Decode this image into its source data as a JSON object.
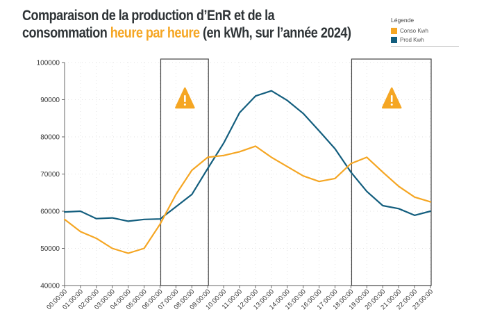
{
  "title": {
    "line1": "Comparaison de la production d’EnR et de la",
    "line2_prefix": "consommation ",
    "line2_highlight": "heure par heure",
    "line2_suffix": " (en kWh, sur l’année 2024)"
  },
  "legend": {
    "title": "Légende"
  },
  "colors": {
    "conso": "#f5a623",
    "prod": "#135e7e",
    "warning": "#f5a623"
  },
  "icons": [
    "warning-icon",
    "warning-icon"
  ],
  "chart_data": {
    "type": "line",
    "x": [
      "00:00:00",
      "01:00:00",
      "02:00:00",
      "03:00:00",
      "04:00:00",
      "05:00:00",
      "06:00:00",
      "07:00:00",
      "08:00:00",
      "09:00:00",
      "10:00:00",
      "11:00:00",
      "12:00:00",
      "13:00:00",
      "14:00:00",
      "15:00:00",
      "16:00:00",
      "17:00:00",
      "18:00:00",
      "19:00:00",
      "20:00:00",
      "21:00:00",
      "22:00:00",
      "23:00:00"
    ],
    "series": [
      {
        "name": "Conso Kwh",
        "color": "#f5a623",
        "values": [
          57800,
          54500,
          52700,
          50000,
          48700,
          50000,
          56500,
          64500,
          71000,
          74500,
          75000,
          76000,
          77500,
          74500,
          72000,
          69500,
          68000,
          68800,
          72800,
          74500,
          70500,
          66700,
          63800,
          62500
        ]
      },
      {
        "name": "Prod Kwh",
        "color": "#135e7e",
        "values": [
          59800,
          60000,
          58000,
          58200,
          57300,
          57800,
          57900,
          61200,
          64500,
          71500,
          78300,
          86500,
          91000,
          92400,
          89800,
          86300,
          81600,
          76800,
          70500,
          65300,
          61500,
          60700,
          58900,
          60000
        ]
      }
    ],
    "ylim": [
      40000,
      100000
    ],
    "yticks": [
      40000,
      50000,
      60000,
      70000,
      80000,
      90000,
      100000
    ],
    "grid": true,
    "legend_position": "top-right",
    "highlight_ranges": [
      [
        "06:00:00",
        "09:00:00"
      ],
      [
        "18:00:00",
        "23:00:00"
      ]
    ]
  }
}
